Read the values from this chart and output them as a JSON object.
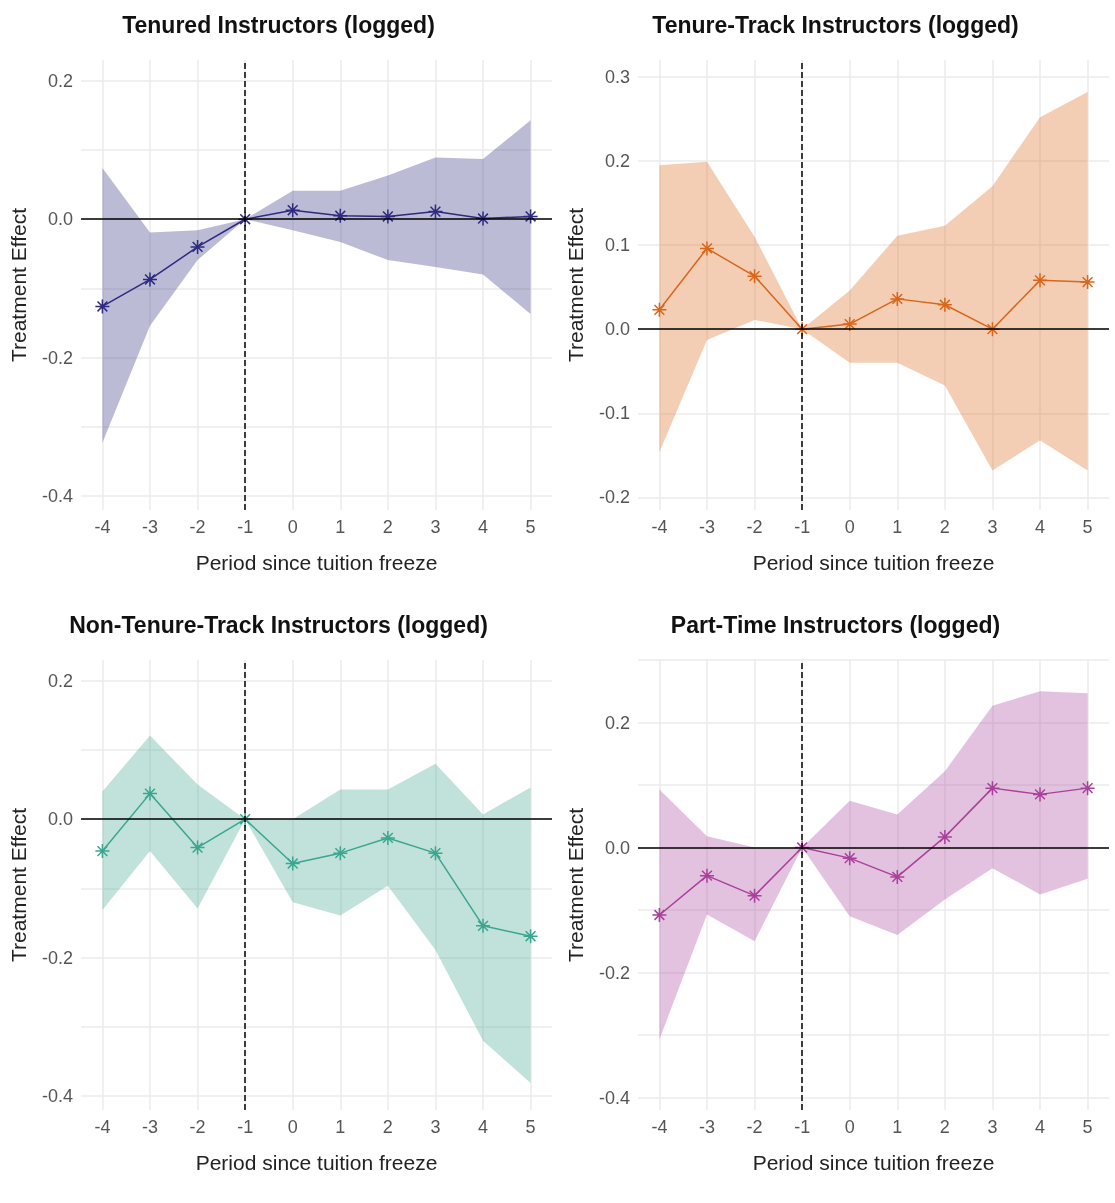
{
  "chart_data": [
    {
      "type": "line",
      "title": "Tenured Instructors (logged)",
      "xlabel": "Period since tuition freeze",
      "ylabel": "Treatment Effect",
      "x": [
        -4,
        -3,
        -2,
        -1,
        0,
        1,
        2,
        3,
        4,
        5
      ],
      "series": [
        {
          "color": "#2e2a80",
          "values": [
            -0.126,
            -0.087,
            -0.04,
            0,
            0.013,
            0.005,
            0.004,
            0.011,
            0.001,
            0.004
          ],
          "lower": [
            -0.323,
            -0.154,
            -0.059,
            0,
            -0.016,
            -0.033,
            -0.059,
            -0.069,
            -0.08,
            -0.137
          ],
          "upper": [
            0.074,
            -0.019,
            -0.016,
            0,
            0.041,
            0.041,
            0.063,
            0.089,
            0.087,
            0.143
          ]
        }
      ],
      "xlim": [
        -4.45,
        5.45
      ],
      "xticks": [
        -4,
        -3,
        -2,
        -1,
        0,
        1,
        2,
        3,
        4,
        5
      ],
      "ylim": [
        -0.42,
        0.23
      ],
      "yticks": [
        {
          "value": -0.4,
          "label": "-0.4"
        },
        {
          "value": -0.3,
          "label": null
        },
        {
          "value": -0.2,
          "label": "-0.2"
        },
        {
          "value": -0.1,
          "label": null
        },
        {
          "value": 0,
          "label": "0.0"
        },
        {
          "value": 0.1,
          "label": null
        },
        {
          "value": 0.2,
          "label": "0.2"
        }
      ],
      "ref_lines": [
        {
          "axis": "y",
          "value": 0,
          "color": "#000000",
          "line_style": "solid"
        },
        {
          "axis": "x",
          "value": -1,
          "color": "#000000",
          "line_style": "dashed"
        }
      ],
      "grid": true,
      "marker": "cross",
      "line_style": "solid"
    },
    {
      "type": "line",
      "title": "Tenure-Track Instructors (logged)",
      "xlabel": "Period since tuition freeze",
      "ylabel": "Treatment Effect",
      "x": [
        -4,
        -3,
        -2,
        -1,
        0,
        1,
        2,
        3,
        4,
        5
      ],
      "series": [
        {
          "color": "#d9661a",
          "values": [
            0.023,
            0.096,
            0.063,
            0,
            0.006,
            0.036,
            0.029,
            0,
            0.058,
            0.056
          ],
          "lower": [
            -0.146,
            -0.013,
            0.011,
            0,
            -0.04,
            -0.04,
            -0.067,
            -0.168,
            -0.132,
            -0.168
          ],
          "upper": [
            0.195,
            0.199,
            0.11,
            0,
            0.046,
            0.111,
            0.123,
            0.17,
            0.252,
            0.282
          ]
        }
      ],
      "xlim": [
        -4.45,
        5.45
      ],
      "xticks": [
        -4,
        -3,
        -2,
        -1,
        0,
        1,
        2,
        3,
        4,
        5
      ],
      "ylim": [
        -0.215,
        0.32
      ],
      "yticks": [
        {
          "value": -0.2,
          "label": "-0.2"
        },
        {
          "value": -0.1,
          "label": "-0.1"
        },
        {
          "value": 0,
          "label": "0.0"
        },
        {
          "value": 0.1,
          "label": "0.1"
        },
        {
          "value": 0.2,
          "label": "0.2"
        },
        {
          "value": 0.3,
          "label": "0.3"
        }
      ],
      "ref_lines": [
        {
          "axis": "y",
          "value": 0,
          "color": "#000000",
          "line_style": "solid"
        },
        {
          "axis": "x",
          "value": -1,
          "color": "#000000",
          "line_style": "dashed"
        }
      ],
      "grid": true,
      "marker": "cross",
      "line_style": "solid"
    },
    {
      "type": "line",
      "title": "Non-Tenure-Track Instructors (logged)",
      "xlabel": "Period since tuition freeze",
      "ylabel": "Treatment Effect",
      "x": [
        -4,
        -3,
        -2,
        -1,
        0,
        1,
        2,
        3,
        4,
        5
      ],
      "series": [
        {
          "color": "#3aa68f",
          "values": [
            -0.046,
            0.037,
            -0.041,
            0,
            -0.064,
            -0.049,
            -0.027,
            -0.049,
            -0.154,
            -0.169
          ],
          "lower": [
            -0.131,
            -0.046,
            -0.129,
            0,
            -0.12,
            -0.139,
            -0.096,
            -0.189,
            -0.32,
            -0.381
          ],
          "upper": [
            0.04,
            0.121,
            0.05,
            0,
            0,
            0.043,
            0.043,
            0.08,
            0.007,
            0.046
          ]
        }
      ],
      "xlim": [
        -4.45,
        5.45
      ],
      "xticks": [
        -4,
        -3,
        -2,
        -1,
        0,
        1,
        2,
        3,
        4,
        5
      ],
      "ylim": [
        -0.42,
        0.23
      ],
      "yticks": [
        {
          "value": -0.4,
          "label": "-0.4"
        },
        {
          "value": -0.3,
          "label": null
        },
        {
          "value": -0.2,
          "label": "-0.2"
        },
        {
          "value": -0.1,
          "label": null
        },
        {
          "value": 0,
          "label": "0.0"
        },
        {
          "value": 0.1,
          "label": null
        },
        {
          "value": 0.2,
          "label": "0.2"
        }
      ],
      "ref_lines": [
        {
          "axis": "y",
          "value": 0,
          "color": "#000000",
          "line_style": "solid"
        },
        {
          "axis": "x",
          "value": -1,
          "color": "#000000",
          "line_style": "dashed"
        }
      ],
      "grid": true,
      "marker": "cross",
      "line_style": "solid"
    },
    {
      "type": "line",
      "title": "Part-Time Instructors (logged)",
      "xlabel": "Period since tuition freeze",
      "ylabel": "Treatment Effect",
      "x": [
        -4,
        -3,
        -2,
        -1,
        0,
        1,
        2,
        3,
        4,
        5
      ],
      "series": [
        {
          "color": "#a9409b",
          "values": [
            -0.108,
            -0.045,
            -0.077,
            0,
            -0.017,
            -0.047,
            0.017,
            0.095,
            0.085,
            0.095
          ],
          "lower": [
            -0.307,
            -0.107,
            -0.15,
            0,
            -0.11,
            -0.14,
            -0.083,
            -0.033,
            -0.075,
            -0.05
          ],
          "upper": [
            0.093,
            0.018,
            0,
            0,
            0.075,
            0.053,
            0.122,
            0.227,
            0.25,
            0.247
          ]
        }
      ],
      "xlim": [
        -4.45,
        5.45
      ],
      "xticks": [
        -4,
        -3,
        -2,
        -1,
        0,
        1,
        2,
        3,
        4,
        5
      ],
      "ylim": [
        -0.42,
        0.3
      ],
      "yticks": [
        {
          "value": -0.4,
          "label": "-0.4"
        },
        {
          "value": -0.3,
          "label": null
        },
        {
          "value": -0.2,
          "label": "-0.2"
        },
        {
          "value": -0.1,
          "label": null
        },
        {
          "value": 0,
          "label": "0.0"
        },
        {
          "value": 0.1,
          "label": null
        },
        {
          "value": 0.2,
          "label": "0.2"
        },
        {
          "value": 0.3,
          "label": null
        }
      ],
      "ref_lines": [
        {
          "axis": "y",
          "value": 0,
          "color": "#000000",
          "line_style": "solid"
        },
        {
          "axis": "x",
          "value": -1,
          "color": "#000000",
          "line_style": "dashed"
        }
      ],
      "grid": true,
      "marker": "cross",
      "line_style": "solid"
    }
  ]
}
